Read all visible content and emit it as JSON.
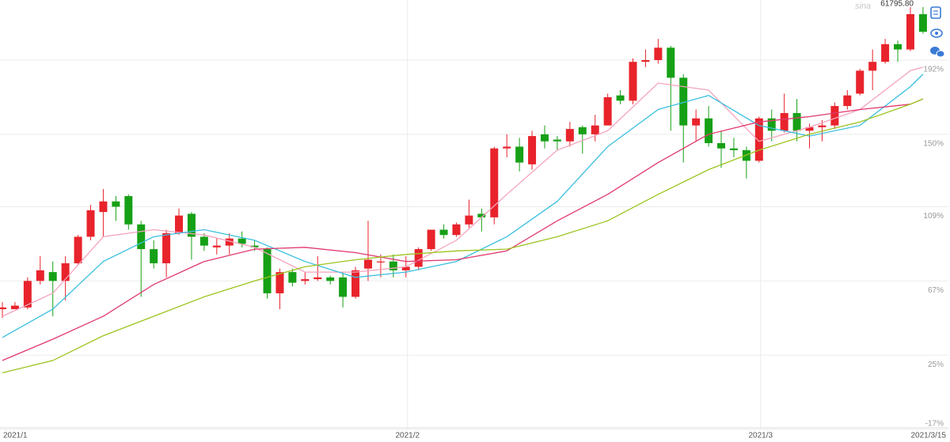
{
  "chart_data": {
    "type": "candlestick",
    "annotation": "61795.80",
    "watermark": "sina",
    "categories": [
      "2021/1",
      null,
      null,
      null,
      null,
      null,
      null,
      null,
      null,
      null,
      null,
      null,
      null,
      null,
      null,
      null,
      null,
      null,
      null,
      null,
      null,
      null,
      null,
      null,
      null,
      null,
      null,
      null,
      null,
      null,
      null,
      null,
      "2021/2",
      null,
      null,
      null,
      null,
      null,
      null,
      null,
      null,
      null,
      null,
      null,
      null,
      null,
      null,
      null,
      null,
      null,
      null,
      null,
      null,
      null,
      null,
      null,
      null,
      null,
      null,
      null,
      "2021/3",
      null,
      null,
      null,
      null,
      null,
      null,
      null,
      null,
      null,
      null,
      null,
      null,
      "2021/3/15"
    ],
    "open": [
      51,
      51,
      52,
      67,
      72,
      67,
      77,
      92,
      106,
      112,
      115,
      99,
      85,
      77,
      94,
      105,
      92,
      86,
      87,
      91,
      87,
      85,
      60,
      72,
      67,
      68,
      69,
      69,
      58,
      74,
      78,
      78,
      73,
      75,
      85,
      96,
      93,
      99,
      105,
      103,
      142,
      143,
      133,
      150,
      147,
      146,
      154,
      150,
      155,
      172,
      169,
      191,
      192,
      199,
      182,
      155,
      159,
      145,
      142,
      141,
      135,
      159,
      152,
      162,
      152,
      154,
      155,
      166,
      173,
      186,
      191,
      201,
      198,
      218
    ],
    "high": [
      55,
      55,
      69,
      81,
      78,
      81,
      93,
      110,
      119,
      115,
      116,
      101,
      90,
      96,
      108,
      106,
      94,
      91,
      94,
      95,
      90,
      86,
      74,
      74,
      72,
      81,
      70,
      72,
      75,
      101,
      82,
      82,
      81,
      86,
      96,
      99,
      100,
      113,
      108,
      143,
      150,
      148,
      152,
      155,
      149,
      157,
      155,
      161,
      173,
      175,
      193,
      198,
      204,
      200,
      184,
      164,
      166,
      152,
      148,
      143,
      160,
      164,
      173,
      170,
      156,
      158,
      168,
      175,
      187,
      198,
      204,
      203,
      222,
      222
    ],
    "low": [
      46,
      51,
      51,
      65,
      47,
      56,
      76,
      90,
      92,
      101,
      96,
      58,
      74,
      69,
      93,
      79,
      84,
      82,
      82,
      86,
      84,
      57,
      51,
      64,
      65,
      67,
      65,
      52,
      57,
      67,
      69,
      69,
      69,
      73,
      84,
      91,
      92,
      97,
      95,
      99,
      137,
      129,
      130,
      142,
      141,
      143,
      139,
      146,
      155,
      167,
      167,
      188,
      190,
      152,
      134,
      146,
      143,
      131,
      137,
      125,
      134,
      146,
      151,
      146,
      142,
      146,
      153,
      164,
      172,
      175,
      190,
      191,
      197,
      207
    ],
    "close": [
      52,
      53,
      67,
      73,
      67,
      77,
      92,
      107,
      112,
      109,
      99,
      85,
      77,
      94,
      104,
      92,
      87,
      87,
      91,
      88,
      86,
      60,
      72,
      66,
      68,
      69,
      67,
      58,
      73,
      79,
      78,
      73,
      75,
      85,
      96,
      93,
      99,
      104,
      103,
      142,
      143,
      134,
      149,
      146,
      146,
      153,
      150,
      155,
      171,
      169,
      191,
      192,
      199,
      182,
      155,
      159,
      145,
      142,
      141,
      135,
      159,
      152,
      162,
      152,
      154,
      155,
      166,
      172,
      186,
      191,
      201,
      198,
      218,
      208
    ],
    "up_color": "#e8232b",
    "down_color": "#16a016",
    "lines": [
      {
        "color": "#f4a3bd",
        "x": [
          0,
          4,
          8,
          12,
          16,
          20,
          24,
          28,
          32,
          36,
          40,
          44,
          48,
          52,
          56,
          60,
          64,
          68,
          72,
          73
        ],
        "values": [
          47,
          60,
          92,
          96,
          93,
          86,
          72,
          72,
          75,
          90,
          116,
          141,
          152,
          179,
          175,
          146,
          154,
          164,
          186,
          188
        ]
      },
      {
        "color": "#3bbfe0",
        "x": [
          0,
          4,
          8,
          12,
          16,
          20,
          24,
          28,
          32,
          36,
          40,
          44,
          48,
          52,
          56,
          60,
          64,
          68,
          72,
          73
        ],
        "values": [
          35,
          51,
          78,
          92,
          96,
          90,
          78,
          69,
          72,
          78,
          92,
          112,
          143,
          164,
          172,
          155,
          149,
          155,
          177,
          184
        ]
      },
      {
        "color": "#e03a6c",
        "x": [
          0,
          4,
          8,
          12,
          16,
          20,
          24,
          28,
          32,
          36,
          40,
          44,
          48,
          52,
          56,
          60,
          64,
          68,
          72,
          73
        ],
        "values": [
          22,
          34,
          47,
          65,
          78,
          85,
          86,
          83,
          78,
          79,
          84,
          101,
          116,
          134,
          150,
          157,
          160,
          164,
          167,
          170
        ]
      },
      {
        "color": "#9cc420",
        "x": [
          0,
          4,
          8,
          12,
          16,
          20,
          24,
          28,
          32,
          36,
          40,
          44,
          48,
          52,
          56,
          60,
          64,
          68,
          72,
          73
        ],
        "values": [
          15,
          22,
          36,
          47,
          58,
          67,
          75,
          79,
          82,
          84,
          85,
          92,
          101,
          116,
          130,
          141,
          150,
          157,
          167,
          170
        ]
      }
    ],
    "ylim": [
      -17,
      226
    ],
    "yticks": [
      {
        "value": -17,
        "label": "-17%"
      },
      {
        "value": 25,
        "label": "25%"
      },
      {
        "value": 67,
        "label": "67%"
      },
      {
        "value": 109,
        "label": "109%"
      },
      {
        "value": 150,
        "label": "150%"
      },
      {
        "value": 192,
        "label": "192%"
      }
    ],
    "grid": true
  }
}
